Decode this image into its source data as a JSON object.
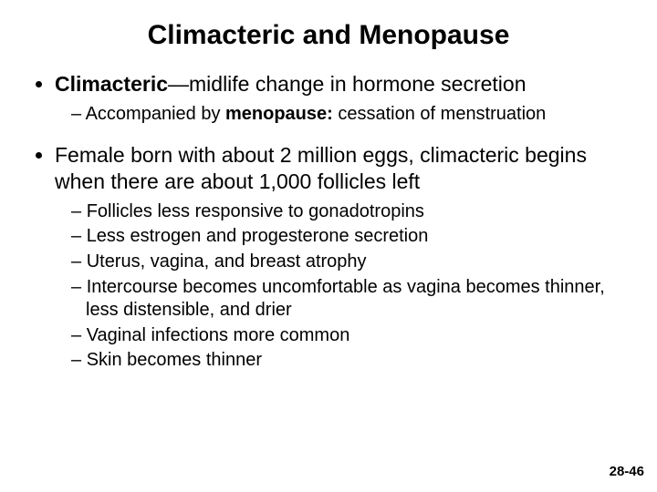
{
  "title": "Climacteric and Menopause",
  "bullet1_bold": "Climacteric",
  "bullet1_rest": "—midlife change in hormone secretion",
  "bullet1_sub1_pre": "Accompanied by ",
  "bullet1_sub1_bold": "menopause:",
  "bullet1_sub1_post": " cessation of menstruation",
  "bullet2": "Female born with about 2 million eggs, climacteric begins when there are about 1,000 follicles left",
  "bullet2_subs": [
    "Follicles less responsive to gonadotropins",
    "Less estrogen and progesterone secretion",
    "Uterus, vagina, and breast atrophy",
    "Intercourse becomes uncomfortable as vagina becomes thinner, less distensible, and drier",
    "Vaginal infections more common",
    "Skin becomes thinner"
  ],
  "page_number": "28-46"
}
